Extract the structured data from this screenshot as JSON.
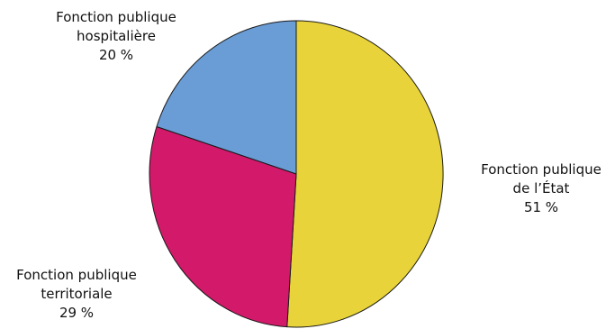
{
  "chart_data": {
    "type": "pie",
    "title": "",
    "start": "top",
    "direction": "clockwise",
    "slices": [
      {
        "key": "etat",
        "label_lines": [
          "Fonction publique",
          "de l’État"
        ],
        "value": 51,
        "value_label": "51 %",
        "color": "#E8D43A"
      },
      {
        "key": "terr",
        "label_lines": [
          "Fonction publique",
          "territoriale"
        ],
        "value": 29,
        "value_label": "29 %",
        "color": "#D2196A"
      },
      {
        "key": "hosp",
        "label_lines": [
          "Fonction publique",
          "hospitalière"
        ],
        "value": 20,
        "value_label": "20 %",
        "color": "#6A9CD5"
      }
    ]
  }
}
